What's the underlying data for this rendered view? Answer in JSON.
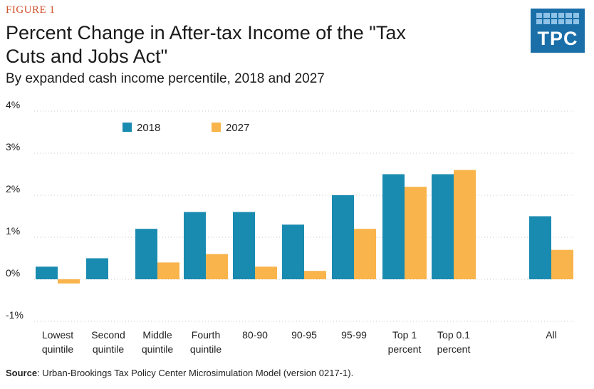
{
  "header": {
    "figure_label": "FIGURE 1",
    "title": "Percent Change in After-tax Income of the \"Tax Cuts and Jobs Act\"",
    "subtitle": "By expanded cash income percentile, 2018 and 2027"
  },
  "logo": {
    "text": "TPC"
  },
  "source": {
    "label": "Source",
    "text": ": Urban-Brookings Tax Policy Center Microsimulation Model (version 0217-1)."
  },
  "colors": {
    "series_2018": "#1a8bb0",
    "series_2027": "#f9b44c",
    "grid": "#c8c8c8"
  },
  "chart_data": {
    "type": "bar",
    "title": "Percent Change in After-tax Income of the \"Tax Cuts and Jobs Act\"",
    "subtitle": "By expanded cash income percentile, 2018 and 2027",
    "categories": [
      [
        "Lowest",
        "quintile"
      ],
      [
        "Second",
        "quintile"
      ],
      [
        "Middle",
        "quintile"
      ],
      [
        "Fourth",
        "quintile"
      ],
      [
        "80-90"
      ],
      [
        "90-95"
      ],
      [
        "95-99"
      ],
      [
        "Top 1",
        "percent"
      ],
      [
        "Top 0.1",
        "percent"
      ],
      [
        "All"
      ]
    ],
    "series": [
      {
        "name": "2018",
        "values": [
          0.3,
          0.5,
          1.2,
          1.6,
          1.6,
          1.3,
          2.0,
          2.5,
          2.5,
          1.5
        ]
      },
      {
        "name": "2027",
        "values": [
          -0.1,
          0.0,
          0.4,
          0.6,
          0.3,
          0.2,
          1.2,
          2.2,
          2.6,
          0.7
        ]
      }
    ],
    "ylim": [
      -1,
      4
    ],
    "yticks": [
      -1,
      0,
      1,
      2,
      3,
      4
    ],
    "ytick_labels": [
      "-1%",
      "0%",
      "1%",
      "2%",
      "3%",
      "4%"
    ],
    "xlabel": "",
    "ylabel": "",
    "grid": true,
    "legend": "top-left"
  }
}
